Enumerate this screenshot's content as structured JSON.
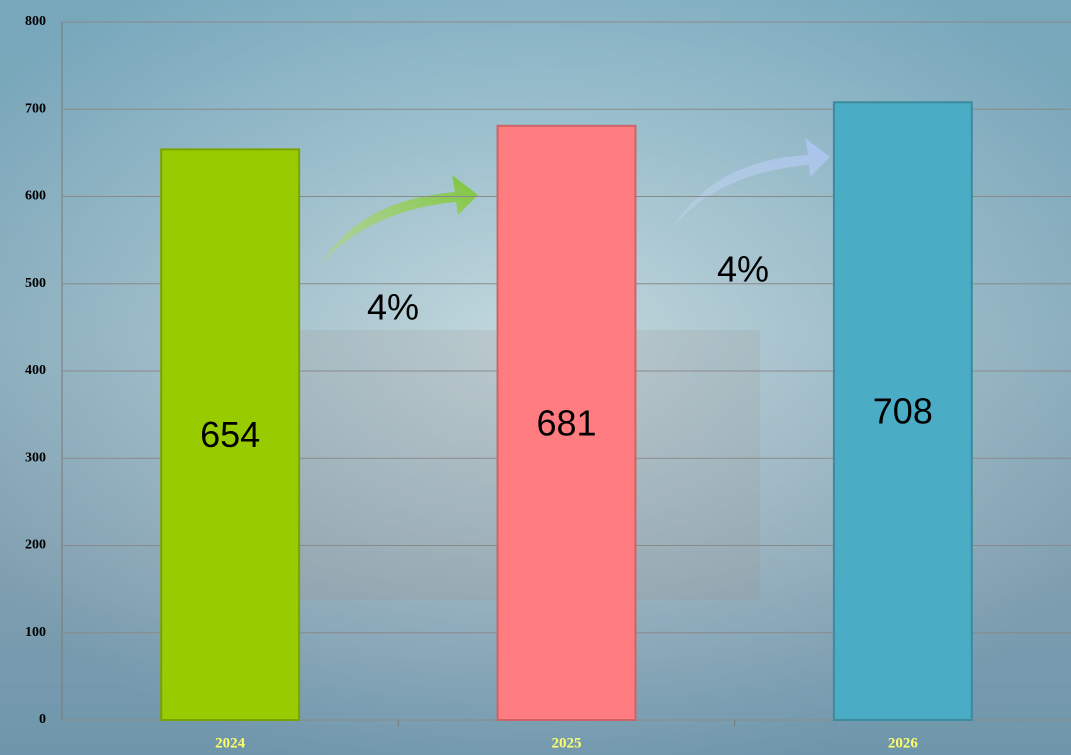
{
  "chart_data": {
    "type": "bar",
    "categories": [
      "2024",
      "2025",
      "2026"
    ],
    "values": [
      654,
      681,
      708
    ],
    "colors": [
      "#99cc00",
      "#ff7c80",
      "#4bacc6"
    ],
    "ylim": [
      0,
      800
    ],
    "yticks": [
      0,
      100,
      200,
      300,
      400,
      500,
      600,
      700,
      800
    ],
    "grid": true,
    "annotations": [
      "4%",
      "4%"
    ]
  }
}
